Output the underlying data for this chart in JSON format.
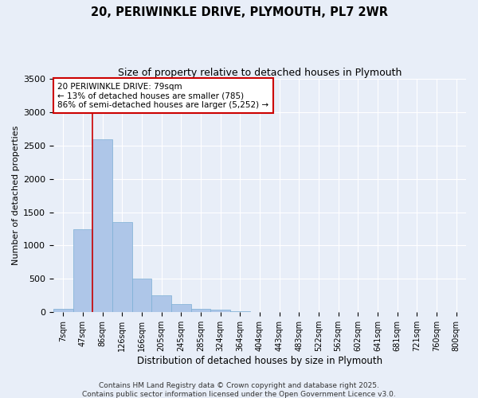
{
  "title_line1": "20, PERIWINKLE DRIVE, PLYMOUTH, PL7 2WR",
  "title_line2": "Size of property relative to detached houses in Plymouth",
  "xlabel": "Distribution of detached houses by size in Plymouth",
  "ylabel": "Number of detached properties",
  "categories": [
    "7sqm",
    "47sqm",
    "86sqm",
    "126sqm",
    "166sqm",
    "205sqm",
    "245sqm",
    "285sqm",
    "324sqm",
    "364sqm",
    "404sqm",
    "443sqm",
    "483sqm",
    "522sqm",
    "562sqm",
    "602sqm",
    "641sqm",
    "681sqm",
    "721sqm",
    "760sqm",
    "800sqm"
  ],
  "values": [
    50,
    1250,
    2600,
    1350,
    500,
    250,
    120,
    50,
    40,
    15,
    8,
    3,
    2,
    1,
    0,
    0,
    0,
    0,
    0,
    0,
    0
  ],
  "bar_color": "#aec6e8",
  "bar_edge_color": "#7bafd4",
  "marker_line_color": "#cc0000",
  "annotation_border_color": "#cc0000",
  "marker_pct_smaller": "13% of detached houses are smaller (785)",
  "marker_pct_larger": "86% of semi-detached houses are larger (5,252)",
  "ylim": [
    0,
    3500
  ],
  "yticks": [
    0,
    500,
    1000,
    1500,
    2000,
    2500,
    3000,
    3500
  ],
  "background_color": "#e8eef8",
  "grid_color": "#ffffff",
  "footer_line1": "Contains HM Land Registry data © Crown copyright and database right 2025.",
  "footer_line2": "Contains public sector information licensed under the Open Government Licence v3.0."
}
